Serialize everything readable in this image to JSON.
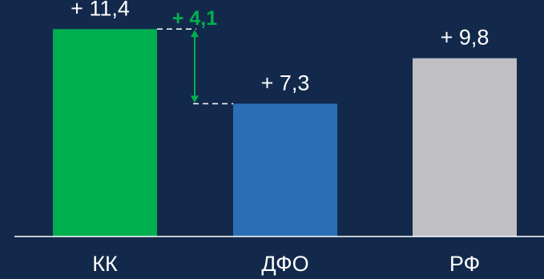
{
  "chart_data": {
    "type": "bar",
    "title": "",
    "xlabel": "",
    "ylabel": "",
    "categories": [
      "КК",
      "ДФО",
      "РФ"
    ],
    "values": [
      11.4,
      7.3,
      9.8
    ],
    "value_labels": [
      "+ 11,4",
      "+ 7,3",
      "+ 9,8"
    ],
    "bar_colors": [
      "#00b050",
      "#2a6fb5",
      "#bfbfc4"
    ],
    "ylim": [
      0,
      13
    ],
    "grid": false,
    "legend": "none",
    "annotation": {
      "text": "+ 4,1",
      "value": 4.1,
      "from_category": "КК",
      "to_category": "ДФО",
      "color": "#00b050"
    }
  },
  "colors": {
    "background": "#13294b",
    "text": "#ffffff",
    "axis": "#ffffff",
    "guide_lines": "#ffffff",
    "arrow": "#00b050"
  }
}
